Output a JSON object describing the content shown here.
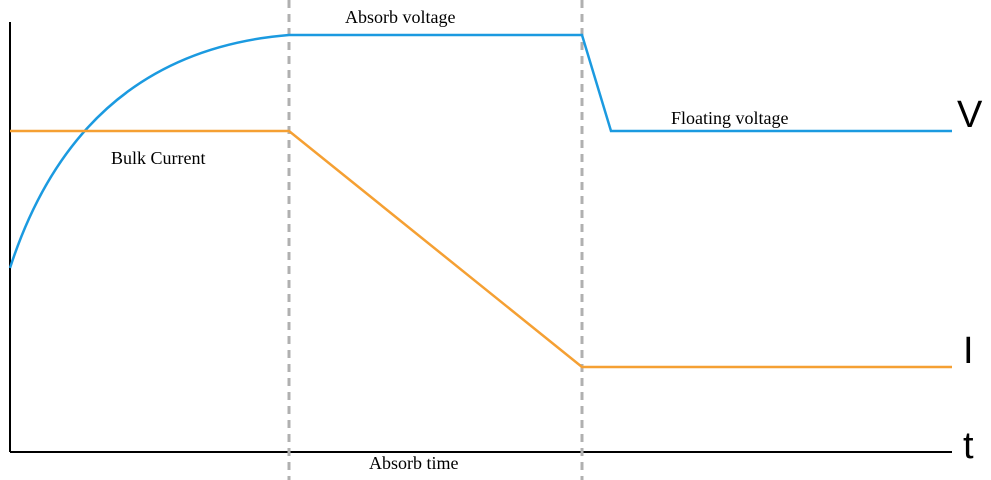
{
  "diagram": {
    "labels": {
      "absorb_voltage": "Absorb voltage",
      "floating_voltage": "Floating voltage",
      "bulk_current": "Bulk Current",
      "absorb_time": "Absorb time",
      "v_axis": "V",
      "i_axis": "I",
      "t_axis": "t"
    },
    "colors": {
      "voltage_curve": "#1b9ae0",
      "current_curve": "#f5a033",
      "phase_divider": "#b0b0b0",
      "axis": "#000000"
    }
  }
}
